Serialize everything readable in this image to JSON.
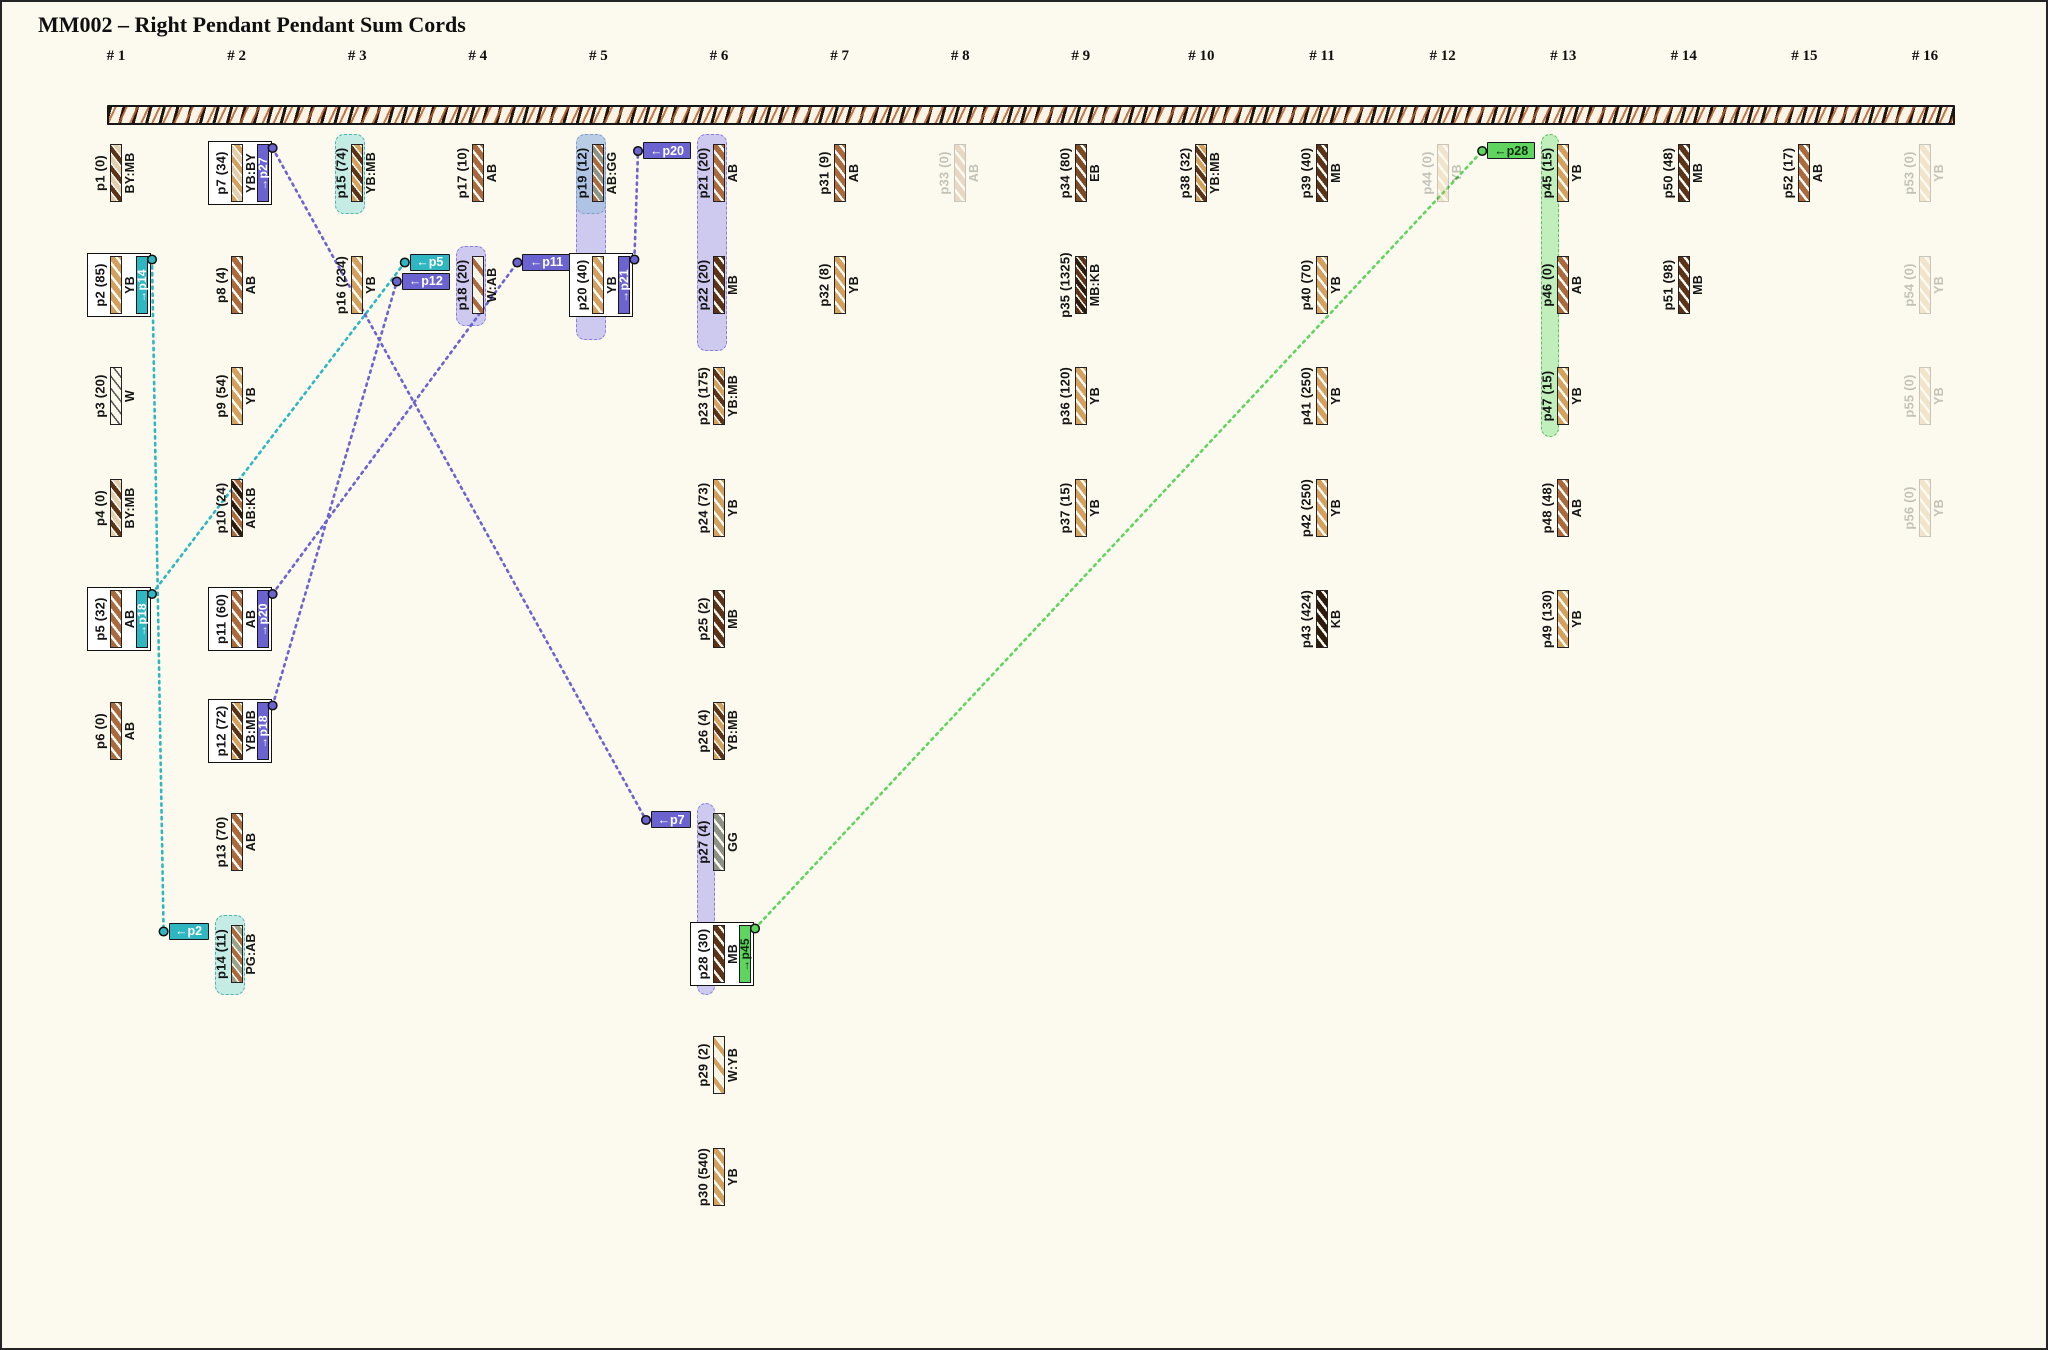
{
  "title": "MM002 – Right Pendant Pendant Sum Cords",
  "columns": [
    "# 1",
    "# 2",
    "# 3",
    "# 4",
    "# 5",
    "# 6",
    "# 7",
    "# 8",
    "# 9",
    "# 10",
    "# 11",
    "# 12",
    "# 13",
    "# 14",
    "# 15",
    "# 16"
  ],
  "accent_colors": {
    "teal": {
      "fill": "#2fb7c1",
      "text": "#ffffff"
    },
    "purple": {
      "fill": "#6a63d0",
      "text": "#ffffff"
    },
    "green": {
      "fill": "#5fd45f",
      "text": "#0a2a0a"
    }
  },
  "band_colors": {
    "teal": {
      "bg": "rgba(178,230,224,0.75)",
      "border": "#4cb4aa"
    },
    "periwinkle": {
      "bg": "rgba(186,180,238,0.70)",
      "border": "#8880d8"
    },
    "steelblue": {
      "bg": "rgba(168,195,226,0.80)",
      "border": "#7f9ec6"
    },
    "green": {
      "bg": "rgba(177,236,175,0.80)",
      "border": "#57c060"
    }
  },
  "component_colors": {
    "W": "#f6f2e4",
    "AB": "#ab6a3d",
    "YB": "#d3a05e",
    "MB": "#5d3317",
    "KB": "#2e1b0c",
    "EB": "#7c4a24",
    "GG": "#8e9284",
    "BY": "#e3cfae",
    "PG": "#9aa28c"
  },
  "pendants": [
    {
      "id": "p1",
      "label": "p1 (0)",
      "code": "BY:MB",
      "col": 1,
      "row": 1
    },
    {
      "id": "p2",
      "label": "p2 (85)",
      "code": "YB",
      "col": 1,
      "row": 2,
      "box": true,
      "out": {
        "target": "p14",
        "color": "teal",
        "label": "→p14"
      }
    },
    {
      "id": "p3",
      "label": "p3 (20)",
      "code": "W",
      "col": 1,
      "row": 3
    },
    {
      "id": "p4",
      "label": "p4 (0)",
      "code": "BY:MB",
      "col": 1,
      "row": 4
    },
    {
      "id": "p5",
      "label": "p5 (32)",
      "code": "AB",
      "col": 1,
      "row": 5,
      "box": true,
      "out": {
        "target": "p18",
        "color": "teal",
        "label": "→p18"
      }
    },
    {
      "id": "p6",
      "label": "p6 (0)",
      "code": "AB",
      "col": 1,
      "row": 6
    },
    {
      "id": "p7",
      "label": "p7 (34)",
      "code": "YB:BY",
      "col": 2,
      "row": 1,
      "box": true,
      "out": {
        "target": "p27",
        "color": "purple",
        "label": "→p27"
      }
    },
    {
      "id": "p8",
      "label": "p8 (4)",
      "code": "AB",
      "col": 2,
      "row": 2
    },
    {
      "id": "p9",
      "label": "p9 (54)",
      "code": "YB",
      "col": 2,
      "row": 3
    },
    {
      "id": "p10",
      "label": "p10 (24)",
      "code": "AB:KB",
      "col": 2,
      "row": 4
    },
    {
      "id": "p11",
      "label": "p11 (60)",
      "code": "AB",
      "col": 2,
      "row": 5,
      "box": true,
      "out": {
        "target": "p20",
        "color": "purple",
        "label": "→p20"
      }
    },
    {
      "id": "p12",
      "label": "p12 (72)",
      "code": "YB:MB",
      "col": 2,
      "row": 6,
      "box": true,
      "out": {
        "target": "p18",
        "color": "purple",
        "label": "→p18"
      }
    },
    {
      "id": "p13",
      "label": "p13 (70)",
      "code": "AB",
      "col": 2,
      "row": 7
    },
    {
      "id": "p14",
      "label": "p14 (11)",
      "code": "PG:AB",
      "col": 2,
      "row": 8,
      "in": [
        {
          "source": "p2",
          "color": "teal",
          "label": "←p2"
        }
      ]
    },
    {
      "id": "p15",
      "label": "p15 (74)",
      "code": "YB:MB",
      "col": 3,
      "row": 1
    },
    {
      "id": "p16",
      "label": "p16 (234)",
      "code": "YB",
      "col": 3,
      "row": 2
    },
    {
      "id": "p17",
      "label": "p17 (10)",
      "code": "AB",
      "col": 4,
      "row": 1
    },
    {
      "id": "p18",
      "label": "p18 (20)",
      "code": "W:AB",
      "col": 4,
      "row": 2,
      "in": [
        {
          "source": "p5",
          "color": "teal",
          "label": "←p5"
        },
        {
          "source": "p12",
          "color": "purple",
          "label": "←p12"
        }
      ]
    },
    {
      "id": "p19",
      "label": "p19 (12)",
      "code": "AB:GG",
      "col": 5,
      "row": 1
    },
    {
      "id": "p20",
      "label": "p20 (40)",
      "code": "YB",
      "col": 5,
      "row": 2,
      "box": true,
      "out": {
        "target": "p21",
        "color": "purple",
        "label": "→p21"
      },
      "in": [
        {
          "source": "p11",
          "color": "purple",
          "label": "←p11"
        }
      ]
    },
    {
      "id": "p21",
      "label": "p21 (20)",
      "code": "AB",
      "col": 6,
      "row": 1,
      "in": [
        {
          "source": "p20",
          "color": "purple",
          "label": "←p20"
        }
      ]
    },
    {
      "id": "p22",
      "label": "p22 (20)",
      "code": "MB",
      "col": 6,
      "row": 2
    },
    {
      "id": "p23",
      "label": "p23 (175)",
      "code": "YB:MB",
      "col": 6,
      "row": 3
    },
    {
      "id": "p24",
      "label": "p24 (73)",
      "code": "YB",
      "col": 6,
      "row": 4
    },
    {
      "id": "p25",
      "label": "p25 (2)",
      "code": "MB",
      "col": 6,
      "row": 5
    },
    {
      "id": "p26",
      "label": "p26 (4)",
      "code": "YB:MB",
      "col": 6,
      "row": 6
    },
    {
      "id": "p27",
      "label": "p27 (4)",
      "code": "GG",
      "col": 6,
      "row": 7,
      "in": [
        {
          "source": "p7",
          "color": "purple",
          "label": "←p7"
        }
      ]
    },
    {
      "id": "p28",
      "label": "p28 (30)",
      "code": "MB",
      "col": 6,
      "row": 8,
      "box": true,
      "out": {
        "target": "p45",
        "color": "green",
        "label": "→p45"
      }
    },
    {
      "id": "p29",
      "label": "p29 (2)",
      "code": "W:YB",
      "col": 6,
      "row": 9
    },
    {
      "id": "p30",
      "label": "p30 (540)",
      "code": "YB",
      "col": 6,
      "row": 10
    },
    {
      "id": "p31",
      "label": "p31 (9)",
      "code": "AB",
      "col": 7,
      "row": 1
    },
    {
      "id": "p32",
      "label": "p32 (8)",
      "code": "YB",
      "col": 7,
      "row": 2
    },
    {
      "id": "p33",
      "label": "p33 (0)",
      "code": "AB",
      "col": 8,
      "row": 1,
      "faded": true
    },
    {
      "id": "p34",
      "label": "p34 (80)",
      "code": "EB",
      "col": 9,
      "row": 1
    },
    {
      "id": "p35",
      "label": "p35 (1325)",
      "code": "MB:KB",
      "col": 9,
      "row": 2
    },
    {
      "id": "p36",
      "label": "p36 (120)",
      "code": "YB",
      "col": 9,
      "row": 3
    },
    {
      "id": "p37",
      "label": "p37 (15)",
      "code": "YB",
      "col": 9,
      "row": 4
    },
    {
      "id": "p38",
      "label": "p38 (32)",
      "code": "YB:MB",
      "col": 10,
      "row": 1
    },
    {
      "id": "p39",
      "label": "p39 (40)",
      "code": "MB",
      "col": 11,
      "row": 1
    },
    {
      "id": "p40",
      "label": "p40 (70)",
      "code": "YB",
      "col": 11,
      "row": 2
    },
    {
      "id": "p41",
      "label": "p41 (250)",
      "code": "YB",
      "col": 11,
      "row": 3
    },
    {
      "id": "p42",
      "label": "p42 (250)",
      "code": "YB",
      "col": 11,
      "row": 4
    },
    {
      "id": "p43",
      "label": "p43 (424)",
      "code": "KB",
      "col": 11,
      "row": 5
    },
    {
      "id": "p44",
      "label": "p44 (0)",
      "code": "YB",
      "col": 12,
      "row": 1,
      "faded": true
    },
    {
      "id": "p45",
      "label": "p45 (15)",
      "code": "YB",
      "col": 13,
      "row": 1,
      "in": [
        {
          "source": "p28",
          "color": "green",
          "label": "←p28"
        }
      ]
    },
    {
      "id": "p46",
      "label": "p46 (0)",
      "code": "AB",
      "col": 13,
      "row": 2
    },
    {
      "id": "p47",
      "label": "p47 (15)",
      "code": "YB",
      "col": 13,
      "row": 3
    },
    {
      "id": "p48",
      "label": "p48 (48)",
      "code": "AB",
      "col": 13,
      "row": 4
    },
    {
      "id": "p49",
      "label": "p49 (130)",
      "code": "YB",
      "col": 13,
      "row": 5
    },
    {
      "id": "p50",
      "label": "p50 (48)",
      "code": "MB",
      "col": 14,
      "row": 1
    },
    {
      "id": "p51",
      "label": "p51 (98)",
      "code": "MB",
      "col": 14,
      "row": 2
    },
    {
      "id": "p52",
      "label": "p52 (17)",
      "code": "AB",
      "col": 15,
      "row": 1
    },
    {
      "id": "p53",
      "label": "p53 (0)",
      "code": "YB",
      "col": 16,
      "row": 1,
      "faded": true
    },
    {
      "id": "p54",
      "label": "p54 (0)",
      "code": "YB",
      "col": 16,
      "row": 2,
      "faded": true
    },
    {
      "id": "p55",
      "label": "p55 (0)",
      "code": "YB",
      "col": 16,
      "row": 3,
      "faded": true
    },
    {
      "id": "p56",
      "label": "p56 (0)",
      "code": "YB",
      "col": 16,
      "row": 4,
      "faded": true
    }
  ],
  "bands": [
    {
      "col": 3,
      "rows": [
        1,
        1
      ],
      "color": "teal"
    },
    {
      "col": 2,
      "rows": [
        8,
        8
      ],
      "color": "teal"
    },
    {
      "col": 4,
      "rows": [
        2,
        2
      ],
      "color": "periwinkle"
    },
    {
      "col": 5,
      "rows": [
        1,
        2
      ],
      "color": "periwinkle",
      "ext": [
        18,
        14
      ]
    },
    {
      "col": 5,
      "rows": [
        1,
        1
      ],
      "color": "steelblue"
    },
    {
      "col": 6,
      "rows": [
        1,
        2
      ],
      "color": "periwinkle",
      "ext": [
        0,
        25
      ]
    },
    {
      "col": 6,
      "rows": [
        7,
        8
      ],
      "color": "periwinkle",
      "narrow": true
    },
    {
      "col": 13,
      "rows": [
        1,
        3
      ],
      "color": "green",
      "narrow": true
    }
  ]
}
